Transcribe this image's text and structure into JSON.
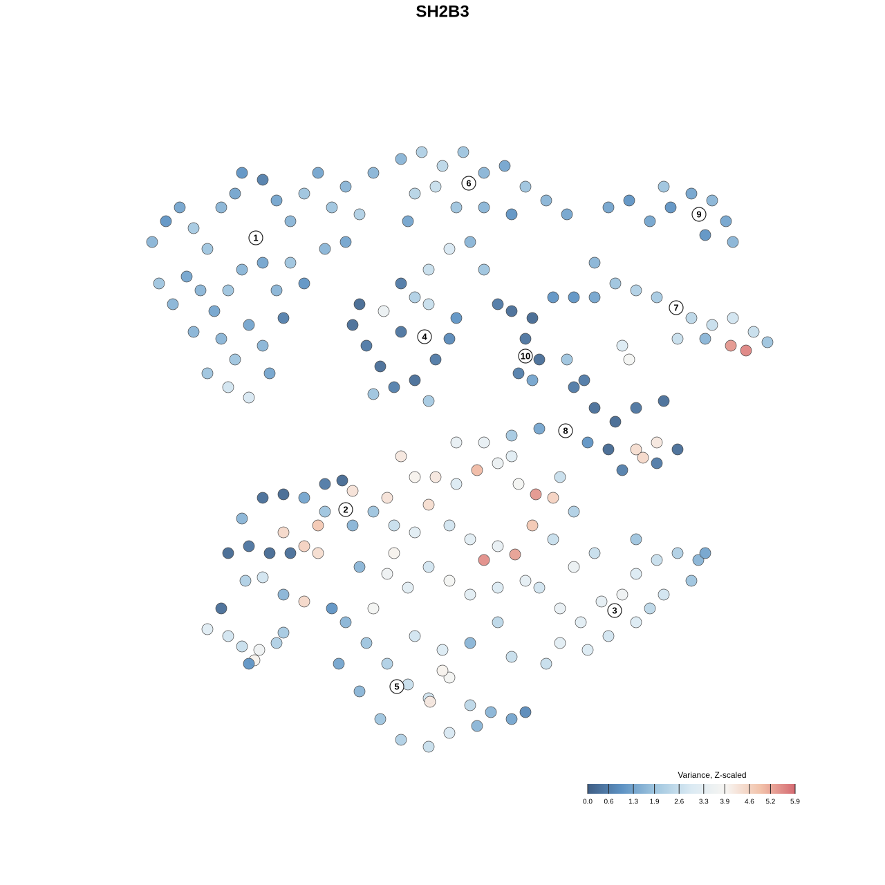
{
  "chart_data": {
    "type": "scatter",
    "title": "SH2B3",
    "xlim": [
      0,
      128
    ],
    "ylim": [
      128,
      0
    ],
    "x": [
      22,
      24,
      26,
      28,
      30,
      32,
      34,
      35,
      38,
      40,
      42,
      44,
      46,
      48,
      50,
      52,
      54,
      23,
      25,
      27,
      29,
      31,
      33,
      35,
      38,
      40,
      42,
      44,
      47,
      50,
      32,
      34,
      36,
      38,
      33,
      36,
      39,
      30,
      41,
      28,
      58,
      61,
      64,
      67,
      70,
      73,
      76,
      79,
      82,
      60,
      63,
      66,
      70,
      74,
      59,
      68,
      70,
      62,
      65,
      88,
      91,
      94,
      97,
      100,
      103,
      105,
      106,
      102,
      96,
      86,
      89,
      92,
      95,
      100,
      103,
      106,
      109,
      111,
      102,
      105.7,
      107.9,
      98,
      90,
      91,
      86,
      83,
      51,
      53,
      55,
      57,
      60,
      63,
      65,
      62,
      60,
      55.5,
      58,
      52,
      66,
      54,
      62,
      58,
      74,
      77,
      76,
      78,
      75,
      77,
      72,
      80,
      83,
      86,
      89,
      92,
      96,
      98,
      95,
      90,
      88,
      92,
      95,
      93,
      78,
      74,
      85,
      82,
      84.5,
      33,
      36,
      39,
      41,
      42,
      44,
      46,
      35,
      38,
      41,
      44,
      47,
      49.5,
      46,
      47,
      51,
      38,
      41,
      44,
      35.5,
      51,
      58,
      60,
      63,
      66,
      69,
      72,
      75,
      77.5,
      80,
      83,
      57,
      60,
      62,
      65,
      68,
      70,
      72,
      74.5,
      77,
      80,
      56,
      59,
      62,
      65,
      68,
      72,
      76,
      54,
      57,
      52,
      56,
      54,
      66,
      70,
      74,
      81,
      78,
      81,
      84,
      87,
      90,
      92,
      95,
      98,
      101,
      102,
      96,
      92,
      88,
      85,
      81,
      79,
      92,
      100,
      94,
      86,
      83,
      50,
      53,
      56,
      59,
      62,
      65,
      68,
      71,
      74,
      76,
      55,
      58,
      62,
      65,
      69,
      52,
      49,
      60,
      64,
      68,
      72,
      74,
      48,
      62.2,
      64,
      30,
      33,
      35,
      37.5,
      36.8,
      40,
      36,
      41,
      32
    ],
    "y": [
      35,
      32,
      30,
      33,
      36,
      30,
      28,
      25,
      26,
      29,
      32,
      28,
      25,
      30,
      27,
      31,
      25,
      41,
      44,
      40,
      42,
      45,
      42,
      39,
      38,
      42,
      38,
      41,
      36,
      35,
      49,
      52,
      47,
      50,
      56,
      57.5,
      54,
      54,
      46,
      48,
      23,
      22,
      24,
      22,
      25,
      24,
      27,
      29,
      31,
      28,
      27,
      30,
      30,
      31,
      32,
      35,
      39,
      39,
      36,
      30,
      29,
      32,
      30,
      28,
      29,
      32,
      35,
      34,
      27,
      38,
      41,
      42,
      43,
      46,
      47,
      46,
      48,
      49.5,
      49,
      50,
      50.7,
      49,
      50,
      52,
      43,
      43,
      47,
      50,
      53,
      56,
      55,
      52,
      49,
      44,
      43,
      45,
      48,
      44,
      46,
      57,
      58,
      41,
      45,
      46,
      49,
      52,
      54,
      55,
      44,
      43,
      56,
      59,
      61,
      59,
      58,
      65,
      67,
      68,
      65,
      65,
      64,
      66.2,
      62,
      63,
      64,
      52,
      55,
      80,
      79,
      80,
      77,
      80,
      79,
      80,
      75,
      72,
      71.5,
      72,
      70,
      69.5,
      76,
      74,
      76,
      83.5,
      86,
      87,
      84,
      71,
      66,
      69,
      69,
      70,
      68,
      67,
      70,
      71.5,
      72,
      74,
      76,
      77,
      73,
      76,
      78,
      81,
      79,
      80.2,
      76,
      78,
      83,
      85,
      82,
      84,
      86,
      85,
      84,
      88,
      80,
      82,
      72,
      74,
      64,
      64,
      66,
      69,
      85,
      88,
      90,
      87,
      86,
      83,
      81,
      80,
      81,
      80,
      86,
      90,
      92,
      94,
      93,
      96,
      78,
      84,
      88,
      80,
      82,
      90,
      93,
      96,
      99,
      101,
      98,
      102,
      103,
      104,
      103,
      104,
      107,
      108,
      106,
      105,
      100,
      96,
      92,
      94,
      93,
      90,
      95,
      88,
      101.5,
      97,
      91,
      92,
      93.5,
      94,
      95.5,
      93,
      96,
      91.5,
      88
    ],
    "values": [
      1.6,
      1.0,
      1.3,
      2.0,
      1.9,
      1.6,
      1.3,
      1.0,
      0.6,
      1.3,
      1.6,
      1.9,
      1.3,
      1.9,
      1.6,
      2.2,
      1.6,
      1.9,
      1.6,
      1.3,
      1.6,
      1.3,
      1.9,
      1.6,
      1.3,
      1.6,
      1.9,
      1.0,
      1.6,
      1.3,
      1.6,
      1.9,
      1.3,
      1.6,
      2.8,
      2.9,
      1.3,
      1.9,
      0.6,
      1.6,
      1.6,
      2.2,
      2.4,
      1.9,
      1.6,
      1.3,
      1.9,
      1.6,
      1.3,
      2.3,
      2.6,
      1.9,
      1.6,
      1.0,
      1.3,
      1.6,
      1.9,
      2.6,
      2.9,
      1.3,
      1.0,
      1.3,
      1.0,
      1.3,
      1.6,
      1.3,
      1.6,
      1.0,
      1.9,
      1.6,
      1.9,
      2.2,
      2.0,
      2.4,
      2.6,
      2.8,
      2.6,
      1.9,
      1.6,
      5.4,
      5.6,
      2.6,
      3.0,
      3.8,
      1.3,
      1.0,
      0.3,
      0.5,
      0.3,
      0.6,
      0.3,
      0.5,
      0.8,
      2.6,
      2.2,
      3.5,
      0.4,
      0.2,
      1.0,
      1.9,
      2.0,
      0.5,
      0.3,
      0.2,
      0.4,
      0.3,
      0.6,
      1.3,
      0.5,
      1.0,
      0.5,
      0.3,
      0.2,
      0.4,
      0.3,
      0.3,
      0.5,
      0.6,
      0.2,
      4.4,
      4.2,
      4.5,
      1.3,
      2.0,
      1.0,
      1.9,
      0.5,
      0.2,
      0.4,
      0.2,
      4.5,
      0.3,
      4.6,
      4.4,
      1.6,
      0.3,
      0.2,
      1.3,
      0.5,
      0.2,
      4.8,
      1.9,
      1.6,
      2.8,
      1.6,
      4.5,
      2.2,
      4.3,
      4.2,
      4.0,
      4.2,
      3.0,
      5.0,
      3.5,
      3.8,
      5.4,
      4.6,
      2.2,
      2.6,
      3.2,
      4.4,
      2.8,
      3.2,
      5.5,
      3.4,
      5.3,
      4.8,
      2.6,
      3.6,
      3.2,
      2.8,
      3.8,
      3.2,
      3.0,
      3.3,
      3.8,
      4.0,
      1.6,
      4.3,
      1.9,
      3.4,
      3.4,
      3.2,
      2.6,
      2.8,
      3.4,
      3.2,
      3.3,
      3.6,
      3.0,
      2.6,
      2.2,
      1.6,
      1.3,
      2.8,
      3.0,
      2.8,
      3.0,
      3.2,
      2.6,
      1.9,
      1.9,
      2.4,
      2.6,
      3.5,
      1.6,
      1.9,
      2.2,
      2.6,
      2.8,
      3.8,
      2.4,
      1.6,
      1.3,
      0.8,
      1.9,
      2.2,
      2.6,
      2.9,
      1.6,
      1.6,
      1.3,
      2.8,
      3.0,
      1.6,
      2.4,
      2.6,
      1.0,
      4.2,
      4.0,
      3.1,
      2.8,
      2.6,
      3.6,
      4.0,
      2.2,
      1.0,
      2.0,
      0.3
    ],
    "clusters": [
      {
        "label": "1",
        "x": 37.0,
        "y": 34.4
      },
      {
        "label": "2",
        "x": 50.0,
        "y": 73.7
      },
      {
        "label": "3",
        "x": 88.9,
        "y": 88.3
      },
      {
        "label": "4",
        "x": 61.4,
        "y": 48.7
      },
      {
        "label": "5",
        "x": 57.4,
        "y": 99.3
      },
      {
        "label": "6",
        "x": 67.8,
        "y": 26.5
      },
      {
        "label": "7",
        "x": 97.8,
        "y": 44.5
      },
      {
        "label": "8",
        "x": 81.8,
        "y": 62.3
      },
      {
        "label": "9",
        "x": 101.1,
        "y": 31.0
      },
      {
        "label": "10",
        "x": 76.0,
        "y": 51.5
      }
    ],
    "colorbar": {
      "title": "Variance, Z-scaled",
      "lim": [
        0,
        5.9
      ],
      "colors": [
        "#3f5e85",
        "#5e93c4",
        "#a3c8e0",
        "#dbeaf3",
        "#f7f5f2",
        "#f2c2aa",
        "#d56a72"
      ],
      "ticks": [
        {
          "value": 0,
          "label": "0.0"
        },
        0.6,
        1.3,
        1.9,
        2.6,
        3.3,
        3.9,
        4.6,
        5.2,
        5.9
      ]
    }
  }
}
